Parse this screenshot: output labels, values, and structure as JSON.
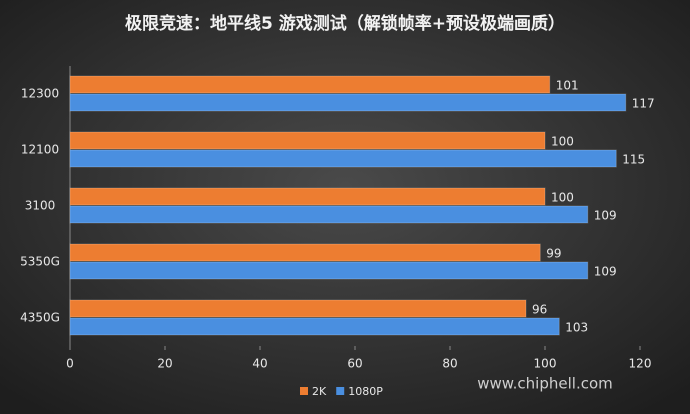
{
  "chart_data": {
    "type": "hbar",
    "title": "极限竞速：地平线5 游戏测试（解锁帧率+预设极端画质）",
    "categories": [
      "12300",
      "12100",
      "3100",
      "5350G",
      "4350G"
    ],
    "series": [
      {
        "name": "2K",
        "color": "#ed7d31",
        "values": [
          101,
          100,
          100,
          99,
          96
        ]
      },
      {
        "name": "1080P",
        "color": "#4a8fe0",
        "values": [
          117,
          115,
          109,
          109,
          103
        ]
      }
    ],
    "xlim": [
      0,
      120
    ],
    "xticks": [
      0,
      20,
      40,
      60,
      80,
      100,
      120
    ],
    "legend": "bottom",
    "watermark": "www.chiphell.com"
  }
}
